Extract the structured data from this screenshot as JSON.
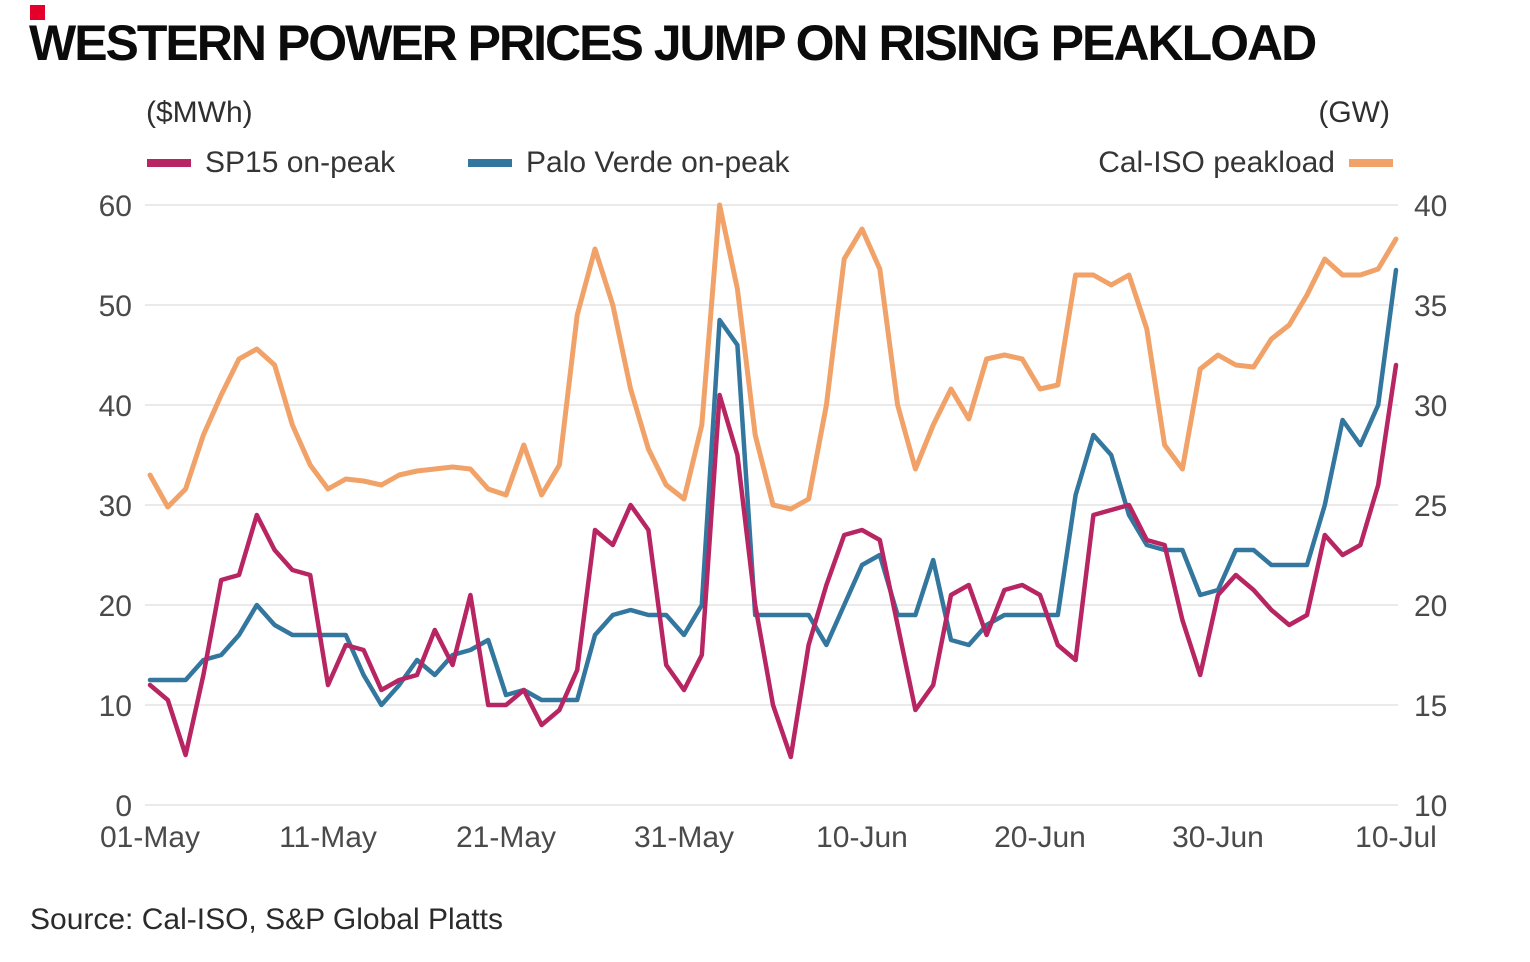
{
  "header": {
    "title": "WESTERN POWER PRICES JUMP ON RISING PEAKLOAD"
  },
  "footer": {
    "source": "Source: Cal-ISO, S&P Global Platts"
  },
  "colors": {
    "brand_red": "#e4002b",
    "grid": "#e4e4e4",
    "tick_text": "#4a4a4a",
    "sp15": "#b72563",
    "palo_verde": "#33779f",
    "cal_iso": "#f1a269"
  },
  "chart_data": {
    "type": "line",
    "title": "WESTERN POWER PRICES JUMP ON RISING PEAKLOAD",
    "grid": "horizontal",
    "legend_position": "top",
    "left_axis": {
      "unit": "($MWh)",
      "min": 0,
      "max": 60,
      "ticks": [
        0,
        10,
        20,
        30,
        40,
        50,
        60
      ]
    },
    "right_axis": {
      "unit": "(GW)",
      "min": 10,
      "max": 40,
      "ticks": [
        10,
        15,
        20,
        25,
        30,
        35,
        40
      ]
    },
    "x_axis": {
      "tick_labels": [
        "01-May",
        "11-May",
        "21-May",
        "31-May",
        "10-Jun",
        "20-Jun",
        "30-Jun",
        "10-Jul"
      ],
      "tick_indices": [
        0,
        10,
        20,
        30,
        40,
        50,
        60,
        70
      ]
    },
    "dates": [
      "01-May",
      "02-May",
      "03-May",
      "04-May",
      "05-May",
      "06-May",
      "07-May",
      "08-May",
      "09-May",
      "10-May",
      "11-May",
      "12-May",
      "13-May",
      "14-May",
      "15-May",
      "16-May",
      "17-May",
      "18-May",
      "19-May",
      "20-May",
      "21-May",
      "22-May",
      "23-May",
      "24-May",
      "25-May",
      "26-May",
      "27-May",
      "28-May",
      "29-May",
      "30-May",
      "31-May",
      "01-Jun",
      "02-Jun",
      "03-Jun",
      "04-Jun",
      "05-Jun",
      "06-Jun",
      "07-Jun",
      "08-Jun",
      "09-Jun",
      "10-Jun",
      "11-Jun",
      "12-Jun",
      "13-Jun",
      "14-Jun",
      "15-Jun",
      "16-Jun",
      "17-Jun",
      "18-Jun",
      "19-Jun",
      "20-Jun",
      "21-Jun",
      "22-Jun",
      "23-Jun",
      "24-Jun",
      "25-Jun",
      "26-Jun",
      "27-Jun",
      "28-Jun",
      "29-Jun",
      "30-Jun",
      "01-Jul",
      "02-Jul",
      "03-Jul",
      "04-Jul",
      "05-Jul",
      "06-Jul",
      "07-Jul",
      "08-Jul",
      "09-Jul",
      "10-Jul"
    ],
    "series": [
      {
        "name": "SP15 on-peak",
        "axis": "left",
        "color": "#b72563",
        "width": 4.5,
        "values": [
          12,
          10.5,
          5,
          13,
          22.5,
          23,
          29,
          25.5,
          23.5,
          23,
          12,
          16,
          15.5,
          11.5,
          12.5,
          13,
          17.5,
          14,
          21,
          10,
          10,
          11.5,
          8,
          9.5,
          13.5,
          27.5,
          26,
          30,
          27.5,
          14,
          11.5,
          15,
          41,
          35,
          20,
          10,
          4.8,
          16,
          22,
          27,
          27.5,
          26.5,
          18,
          9.5,
          12,
          21,
          22,
          17,
          21.5,
          22,
          21,
          16,
          14.5,
          29,
          29.5,
          30,
          26.5,
          26,
          18.5,
          13,
          21,
          23,
          21.5,
          19.5,
          18,
          19,
          27,
          25,
          26,
          32,
          44
        ]
      },
      {
        "name": "Palo Verde on-peak",
        "axis": "left",
        "color": "#33779f",
        "width": 4.5,
        "values": [
          12.5,
          12.5,
          12.5,
          14.5,
          15,
          17,
          20,
          18,
          17,
          17,
          17,
          17,
          13,
          10,
          12,
          14.5,
          13,
          15,
          15.5,
          16.5,
          11,
          11.5,
          10.5,
          10.5,
          10.5,
          17,
          19,
          19.5,
          19,
          19,
          17,
          20,
          48.5,
          46,
          19,
          19,
          19,
          19,
          16,
          20,
          24,
          25,
          19,
          19,
          24.5,
          16.5,
          16,
          18,
          19,
          19,
          19,
          19,
          31,
          37,
          35,
          29,
          26,
          25.5,
          25.5,
          21,
          21.5,
          25.5,
          25.5,
          24,
          24,
          24,
          30,
          38.5,
          36,
          40,
          53.5
        ]
      },
      {
        "name": "Cal-ISO peakload",
        "axis": "right",
        "color": "#f1a269",
        "width": 5,
        "values": [
          26.5,
          24.9,
          25.8,
          28.5,
          30.5,
          32.3,
          32.8,
          32,
          29,
          27,
          25.8,
          26.3,
          26.2,
          26,
          26.5,
          26.7,
          26.8,
          26.9,
          26.8,
          25.8,
          25.5,
          28,
          25.5,
          27,
          34.5,
          37.8,
          35,
          30.8,
          27.8,
          26,
          25.3,
          29,
          40,
          35.8,
          28.5,
          25,
          24.8,
          25.3,
          30,
          37.3,
          38.8,
          36.8,
          30,
          26.8,
          29,
          30.8,
          29.3,
          32.3,
          32.5,
          32.3,
          30.8,
          31,
          36.5,
          36.5,
          36,
          36.5,
          33.8,
          28,
          26.8,
          31.8,
          32.5,
          32,
          31.9,
          33.3,
          34,
          35.5,
          37.3,
          36.5,
          36.5,
          36.8,
          38.3
        ]
      }
    ]
  }
}
